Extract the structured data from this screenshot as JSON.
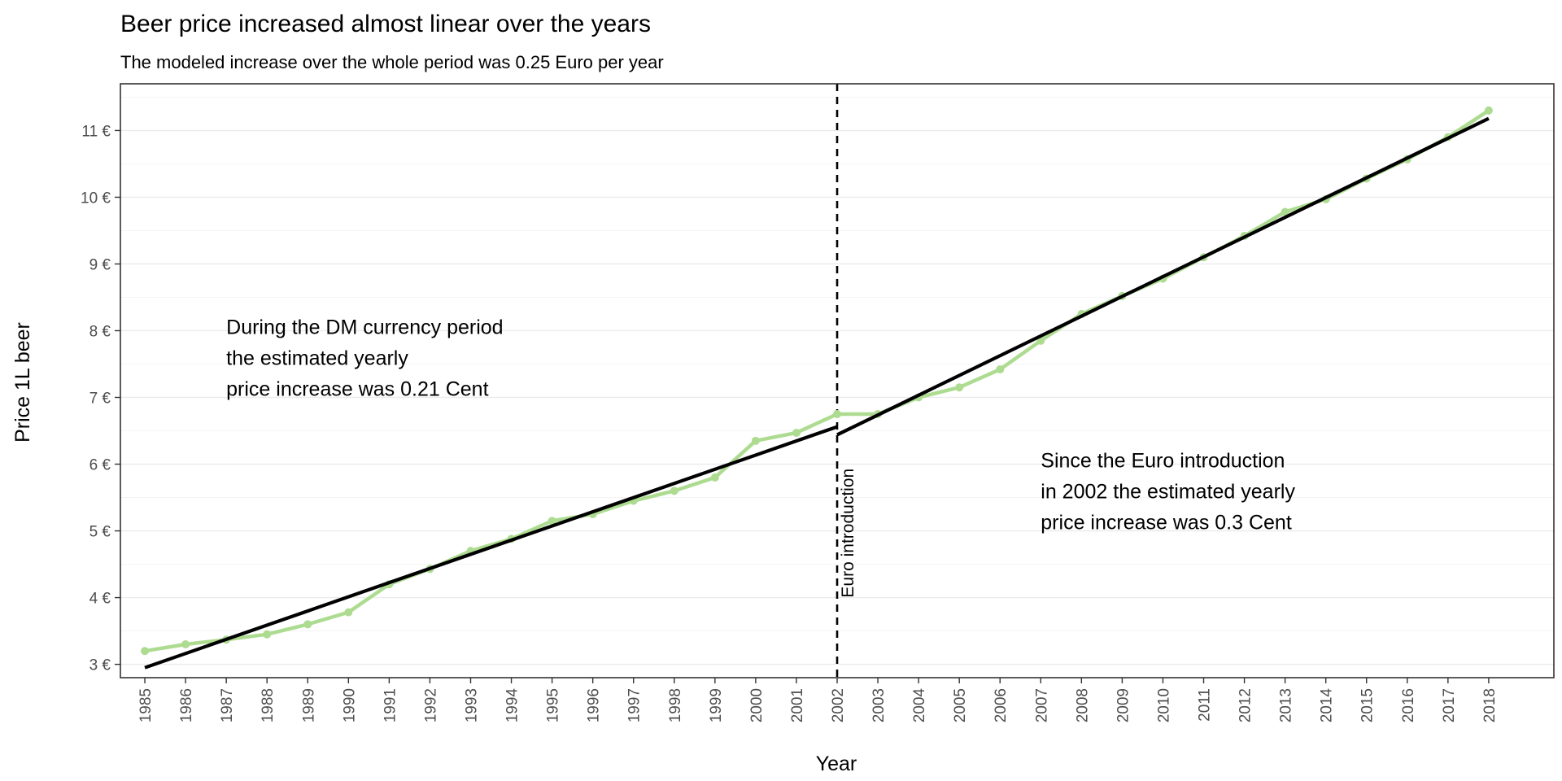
{
  "chart_data": {
    "type": "line",
    "title": "Beer price increased almost linear over the years",
    "subtitle": "The modeled increase over the whole period was 0.25  Euro per year",
    "xlabel": "Year",
    "ylabel": "Price 1L beer",
    "xlim": [
      1984.4,
      2019.6
    ],
    "ylim": [
      2.8,
      11.7
    ],
    "y_ticks": [
      "3 €",
      "4 €",
      "5 €",
      "6 €",
      "7 €",
      "8 €",
      "9 €",
      "10 €",
      "11 €"
    ],
    "y_tick_values": [
      3,
      4,
      5,
      6,
      7,
      8,
      9,
      10,
      11
    ],
    "x_ticks": [
      "1985",
      "1986",
      "1987",
      "1988",
      "1989",
      "1990",
      "1991",
      "1992",
      "1993",
      "1994",
      "1995",
      "1996",
      "1997",
      "1998",
      "1999",
      "2000",
      "2001",
      "2002",
      "2003",
      "2004",
      "2005",
      "2006",
      "2007",
      "2008",
      "2009",
      "2010",
      "2011",
      "2012",
      "2013",
      "2014",
      "2015",
      "2016",
      "2017",
      "2018"
    ],
    "series": [
      {
        "color": "#addc91",
        "x": [
          1985,
          1986,
          1987,
          1988,
          1989,
          1990,
          1991,
          1992,
          1993,
          1994,
          1995,
          1996,
          1997,
          1998,
          1999,
          2000,
          2001,
          2002,
          2003,
          2004,
          2005,
          2006,
          2007,
          2008,
          2009,
          2010,
          2011,
          2012,
          2013,
          2014,
          2015,
          2016,
          2017,
          2018
        ],
        "values": [
          3.2,
          3.3,
          3.37,
          3.45,
          3.6,
          3.78,
          4.2,
          4.43,
          4.7,
          4.88,
          5.15,
          5.25,
          5.45,
          5.6,
          5.8,
          6.35,
          6.47,
          6.75,
          6.75,
          7.0,
          7.15,
          7.42,
          7.85,
          8.25,
          8.52,
          8.78,
          9.1,
          9.42,
          9.78,
          9.97,
          10.28,
          10.57,
          10.9,
          11.3
        ]
      }
    ],
    "fits": [
      {
        "x": [
          1985,
          2002
        ],
        "values": [
          2.95,
          6.56
        ],
        "color": "#000000"
      },
      {
        "x": [
          2002,
          2018
        ],
        "values": [
          6.44,
          11.18
        ],
        "color": "#000000"
      }
    ],
    "vline": {
      "x": 2002,
      "label": "Euro introduction",
      "style": "dashed"
    },
    "annotations": [
      {
        "x": 1987,
        "y": 7.95,
        "lines": [
          "During the DM currency period",
          "the estimated yearly",
          "price increase was 0.21 Cent"
        ]
      },
      {
        "x": 2007,
        "y": 5.95,
        "lines": [
          "Since the Euro introduction",
          "in 2002 the estimated yearly",
          "price increase was 0.3 Cent"
        ]
      }
    ],
    "grid": true,
    "theme": "bw"
  }
}
